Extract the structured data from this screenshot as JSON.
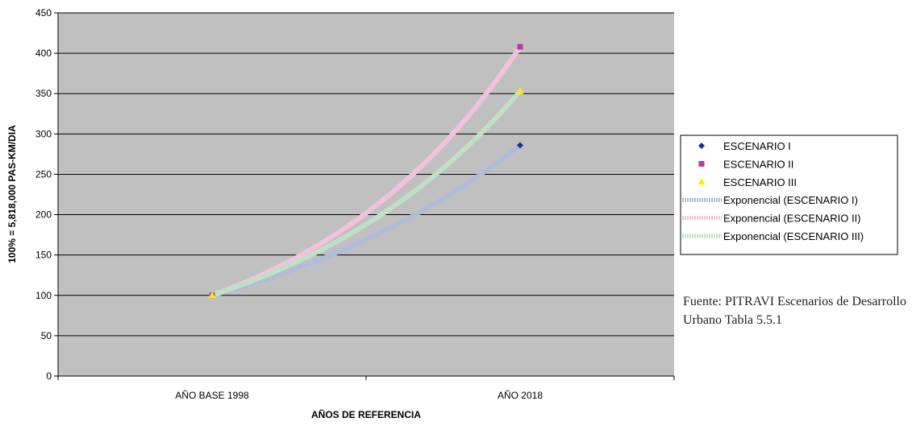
{
  "chart_data": {
    "type": "scatter",
    "categories": [
      "AÑO BASE 1998",
      "AÑO 2018"
    ],
    "xlabel": "AÑOS DE REFERENCIA",
    "ylabel": "100% = 5,818,000 PAS-KM/DIA",
    "ylim": [
      0,
      450
    ],
    "yticks": [
      0,
      50,
      100,
      150,
      200,
      250,
      300,
      350,
      400,
      450
    ],
    "grid": true,
    "legend_position": "right",
    "plot_background": "#c0c0c0",
    "series": [
      {
        "name": "ESCENARIO I",
        "marker": "diamond",
        "color": "#1f2f8f",
        "values": [
          100,
          286
        ]
      },
      {
        "name": "ESCENARIO II",
        "marker": "square",
        "color": "#b23aa0",
        "values": [
          100,
          408
        ]
      },
      {
        "name": "ESCENARIO III",
        "marker": "triangle",
        "color": "#ffee00",
        "values": [
          100,
          353
        ]
      }
    ],
    "trendlines": [
      {
        "name": "Exponencial (ESCENARIO I)",
        "type": "exponential",
        "color": "#b0bcd8",
        "of": "ESCENARIO I"
      },
      {
        "name": "Exponencial (ESCENARIO II)",
        "type": "exponential",
        "color": "#f2c2dc",
        "of": "ESCENARIO II"
      },
      {
        "name": "Exponencial (ESCENARIO III)",
        "type": "exponential",
        "color": "#bfe0c8",
        "of": "ESCENARIO III"
      }
    ]
  },
  "source_note": "Fuente: PITRAVI Escenarios de Desarrollo Urbano Tabla 5.5.1"
}
